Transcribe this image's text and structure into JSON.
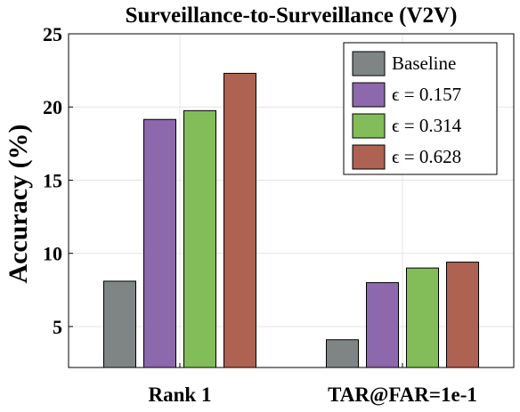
{
  "chart_data": {
    "type": "bar",
    "title": "Surveillance-to-Surveillance (V2V)",
    "ylabel": "Accuracy (%)",
    "xlabel": "",
    "ylim": [
      2.2,
      25
    ],
    "yticks": [
      5,
      10,
      15,
      20,
      25
    ],
    "grid": true,
    "legend_position": "top-right",
    "categories": [
      "Rank 1",
      "TAR@FAR=1e-1"
    ],
    "series": [
      {
        "name": "Baseline",
        "color": "#7f8584",
        "values": [
          8.1,
          4.1
        ]
      },
      {
        "name": "ϵ = 0.157",
        "color": "#8d68ad",
        "values": [
          19.15,
          8.0
        ]
      },
      {
        "name": "ϵ = 0.314",
        "color": "#82bd5a",
        "values": [
          19.75,
          9.0
        ]
      },
      {
        "name": "ϵ = 0.628",
        "color": "#ad6252",
        "values": [
          22.3,
          9.4
        ]
      }
    ]
  }
}
